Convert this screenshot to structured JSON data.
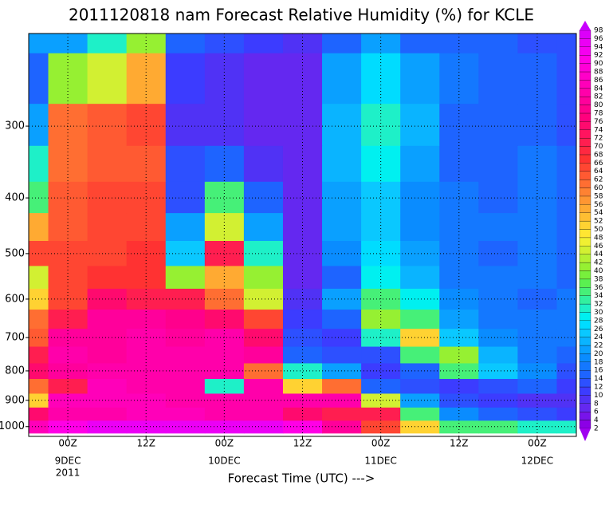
{
  "chart_data": {
    "type": "contour",
    "title": "2011120818 nam Forecast Relative Humidity (%) for KCLE",
    "x_label": "Forecast Time (UTC) --->",
    "xlim": [
      0,
      84
    ],
    "ylim": [
      1040,
      207
    ],
    "log_y": true,
    "grid": true,
    "xticks": [
      {
        "value": 6,
        "label": [
          "00Z",
          "9DEC",
          "2011"
        ]
      },
      {
        "value": 18,
        "label": [
          "12Z"
        ]
      },
      {
        "value": 30,
        "label": [
          "00Z",
          "10DEC"
        ]
      },
      {
        "value": 42,
        "label": [
          "12Z"
        ]
      },
      {
        "value": 54,
        "label": [
          "00Z",
          "11DEC"
        ]
      },
      {
        "value": 66,
        "label": [
          "12Z"
        ]
      },
      {
        "value": 78,
        "label": [
          "00Z",
          "12DEC"
        ]
      }
    ],
    "yticks": [
      300,
      400,
      500,
      600,
      700,
      800,
      900,
      1000
    ],
    "x": [
      0,
      6,
      12,
      18,
      24,
      30,
      36,
      42,
      48,
      54,
      60,
      66,
      72,
      78,
      84
    ],
    "y": [
      1000,
      950,
      900,
      850,
      800,
      750,
      700,
      650,
      600,
      550,
      500,
      450,
      400,
      350,
      300,
      250,
      200
    ],
    "values": [
      [
        85,
        90,
        95,
        95,
        95,
        95,
        95,
        90,
        80,
        65,
        50,
        35,
        35,
        30,
        30
      ],
      [
        75,
        82,
        82,
        85,
        85,
        82,
        82,
        75,
        70,
        70,
        35,
        18,
        14,
        12,
        10
      ],
      [
        50,
        85,
        85,
        85,
        82,
        82,
        82,
        82,
        82,
        45,
        20,
        12,
        10,
        8,
        8
      ],
      [
        60,
        70,
        85,
        82,
        82,
        30,
        82,
        50,
        60,
        15,
        12,
        10,
        12,
        14,
        10
      ],
      [
        75,
        80,
        82,
        82,
        82,
        82,
        60,
        30,
        20,
        10,
        14,
        35,
        25,
        18,
        12
      ],
      [
        70,
        82,
        80,
        82,
        82,
        82,
        80,
        15,
        12,
        12,
        35,
        40,
        22,
        16,
        14
      ],
      [
        62,
        80,
        80,
        82,
        80,
        82,
        75,
        12,
        10,
        30,
        50,
        25,
        18,
        16,
        16
      ],
      [
        60,
        70,
        80,
        80,
        78,
        75,
        65,
        10,
        15,
        40,
        35,
        20,
        16,
        16,
        16
      ],
      [
        50,
        65,
        75,
        70,
        70,
        60,
        45,
        8,
        20,
        35,
        28,
        18,
        16,
        15,
        16
      ],
      [
        45,
        65,
        66,
        66,
        40,
        55,
        40,
        6,
        15,
        28,
        22,
        16,
        16,
        16,
        14
      ],
      [
        65,
        65,
        64,
        66,
        25,
        70,
        30,
        6,
        18,
        26,
        20,
        16,
        14,
        16,
        14
      ],
      [
        55,
        62,
        64,
        64,
        20,
        45,
        20,
        6,
        20,
        25,
        18,
        16,
        16,
        16,
        14
      ],
      [
        35,
        62,
        64,
        64,
        12,
        35,
        15,
        6,
        20,
        25,
        18,
        16,
        14,
        16,
        14
      ],
      [
        30,
        60,
        62,
        62,
        12,
        15,
        8,
        6,
        22,
        28,
        20,
        14,
        14,
        16,
        14
      ],
      [
        20,
        60,
        62,
        64,
        8,
        8,
        6,
        6,
        22,
        30,
        22,
        14,
        14,
        14,
        12
      ],
      [
        15,
        40,
        45,
        55,
        10,
        8,
        6,
        6,
        20,
        26,
        20,
        16,
        14,
        14,
        12
      ],
      [
        20,
        20,
        30,
        40,
        14,
        12,
        10,
        8,
        15,
        20,
        15,
        14,
        14,
        12,
        12
      ]
    ],
    "colorbar": {
      "levels": [
        2,
        4,
        6,
        8,
        10,
        12,
        14,
        16,
        18,
        20,
        22,
        24,
        26,
        28,
        30,
        32,
        34,
        36,
        38,
        40,
        42,
        44,
        46,
        48,
        50,
        52,
        54,
        56,
        58,
        60,
        62,
        64,
        66,
        68,
        70,
        72,
        74,
        76,
        78,
        80,
        82,
        84,
        86,
        88,
        90,
        92,
        94,
        96,
        98
      ],
      "colors": [
        "#a000f0",
        "#8c00e6",
        "#7814ea",
        "#6428f0",
        "#5032f5",
        "#3c3cff",
        "#2d50ff",
        "#1e64ff",
        "#1478ff",
        "#0a8cff",
        "#0aa0ff",
        "#0ab4ff",
        "#0ac8ff",
        "#00dcff",
        "#00f0f0",
        "#1ef0c8",
        "#32f0a0",
        "#46f078",
        "#5af050",
        "#78f03c",
        "#96f032",
        "#b4f032",
        "#d2f032",
        "#f0f032",
        "#ffe632",
        "#ffd232",
        "#ffbe32",
        "#ffaa32",
        "#ff9632",
        "#ff8232",
        "#ff6e32",
        "#ff5a32",
        "#ff4632",
        "#ff3232",
        "#ff2841",
        "#ff1e50",
        "#ff145f",
        "#ff0a6e",
        "#ff007d",
        "#ff008c",
        "#ff009b",
        "#ff00aa",
        "#ff00b9",
        "#ff00c8",
        "#ff00d7",
        "#ff00e6",
        "#f500f0",
        "#eb00f5",
        "#dc00fa",
        "#c800ff"
      ]
    }
  }
}
